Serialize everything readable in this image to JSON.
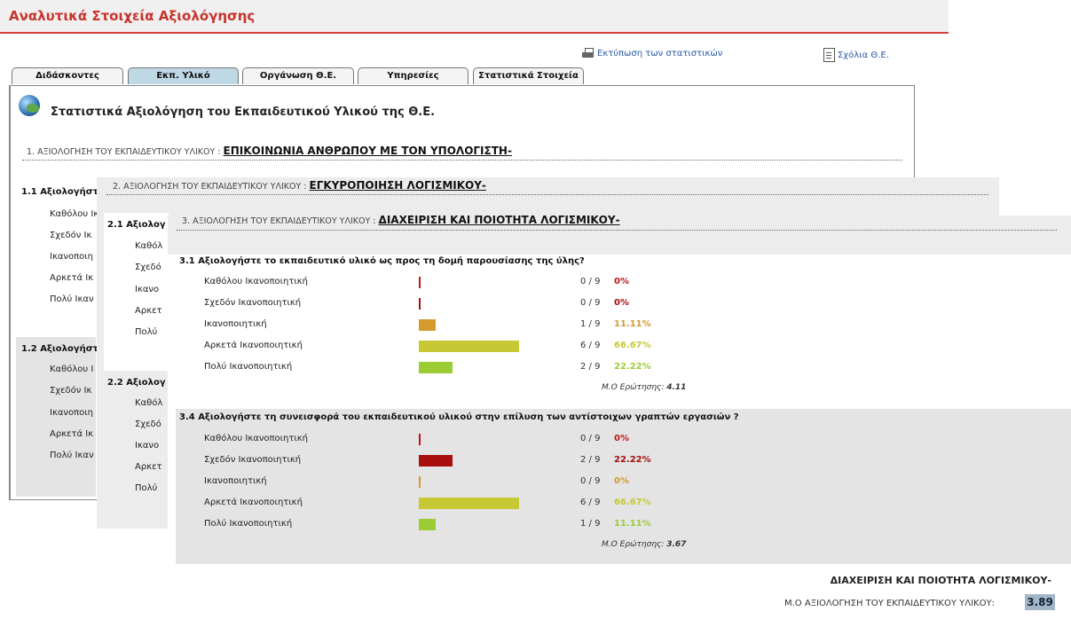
{
  "header": {
    "title": "Αναλυτικά Στοιχεία Αξιολόγησης"
  },
  "links": {
    "print": "Εκτύπωση των στατιστικών",
    "comments": "Σχόλια Θ.Ε."
  },
  "tabs": [
    "Διδάσκοντες",
    "Εκπ. Υλικό",
    "Οργάνωση Θ.Ε.",
    "Υπηρεσίες",
    "Στατιστικά Στοιχεία"
  ],
  "active_tab": "Εκπ. Υλικό",
  "page_heading": "Στατιστικά Αξιολόγηση του Εκπαιδευτικού Υλικού της Θ.Ε.",
  "colors": {
    "zero": "#c0151a",
    "low": "#a80e0e",
    "mid": "#d49a2e",
    "high": "#c6c934",
    "top": "#9ccc34"
  },
  "panel1": {
    "section_label": "1. ΑΞΙΟΛΟΓΗΣΗ ΤΟΥ ΕΚΠΑΙΔΕΥΤΙΚΟΥ ΥΛΙΚΟΥ :",
    "section_name": "ΕΠΙΚΟΙΝΩΝΙΑ ΑΝΘΡΩΠΟΥ ΜΕ ΤΟΝ ΥΠΟΛΟΓΙΣΤΗ-",
    "q1": "1.1 Αξιολογήστ",
    "q2": "1.2 Αξιολογήστ",
    "options": [
      "Καθόλου Ικ",
      "Σχεδόν Ικ",
      "Ικανοποιη",
      "Αρκετά Ικ",
      "Πολύ Ικαν"
    ],
    "options2": [
      "Καθόλου Ι",
      "Σχεδόν Ικ",
      "Ικανοποιη",
      "Αρκετά Ικ",
      "Πολύ Ικαν"
    ]
  },
  "panel2": {
    "section_label": "2. ΑΞΙΟΛΟΓΗΣΗ ΤΟΥ ΕΚΠΑΙΔΕΥΤΙΚΟΥ ΥΛΙΚΟΥ :",
    "section_name": "ΕΓΚΥΡΟΠΟΙΗΣΗ ΛΟΓΙΣΜΙΚΟΥ-",
    "q1": "2.1 Αξιολογ",
    "q2": "2.2 Αξιολογ",
    "options": [
      "Καθόλ",
      "Σχεδό",
      "Ικανο",
      "Αρκετ",
      "Πολύ"
    ],
    "options2": [
      "Καθόλ",
      "Σχεδό",
      "Ικανο",
      "Αρκετ",
      "Πολύ"
    ]
  },
  "panel3": {
    "section_label": "3. ΑΞΙΟΛΟΓΗΣΗ ΤΟΥ ΕΚΠΑΙΔΕΥΤΙΚΟΥ ΥΛΙΚΟΥ :",
    "section_name": "ΔΙΑΧΕΙΡΙΣΗ ΚΑΙ ΠΟΙΟΤΗΤΑ ΛΟΓΙΣΜΙΚΟΥ-",
    "questions": [
      {
        "title": "3.1 Αξιολογήστε το εκπαιδευτικό υλικό ως προς τη δομή παρουσίασης της ύλης?",
        "avg_label": "Μ.Ο Ερώτησης:",
        "avg_value": "4.11",
        "rows": [
          {
            "label": "Καθόλου Ικανοποιητική",
            "count": "0 / 9",
            "pct": "0%",
            "share": 0,
            "color_key": "zero"
          },
          {
            "label": "Σχεδόν Ικανοποιητική",
            "count": "0 / 9",
            "pct": "0%",
            "share": 0,
            "color_key": "low"
          },
          {
            "label": "Ικανοποιητική",
            "count": "1 / 9",
            "pct": "11.11%",
            "share": 0.1111,
            "color_key": "mid"
          },
          {
            "label": "Αρκετά Ικανοποιητική",
            "count": "6 / 9",
            "pct": "66.67%",
            "share": 0.6667,
            "color_key": "high"
          },
          {
            "label": "Πολύ Ικανοποιητική",
            "count": "2 / 9",
            "pct": "22.22%",
            "share": 0.2222,
            "color_key": "top"
          }
        ]
      },
      {
        "title": "3.4 Αξιολογήστε τη συνεισφορά του εκπαιδευτικού υλικού στην επίλυση των αντίστοιχων γραπτών εργασιών ?",
        "avg_label": "Μ.Ο Ερώτησης:",
        "avg_value": "3.67",
        "rows": [
          {
            "label": "Καθόλου Ικανοποιητική",
            "count": "0 / 9",
            "pct": "0%",
            "share": 0,
            "color_key": "zero"
          },
          {
            "label": "Σχεδόν Ικανοποιητική",
            "count": "2 / 9",
            "pct": "22.22%",
            "share": 0.2222,
            "color_key": "low"
          },
          {
            "label": "Ικανοποιητική",
            "count": "0 / 9",
            "pct": "0%",
            "share": 0,
            "color_key": "mid"
          },
          {
            "label": "Αρκετά Ικανοποιητική",
            "count": "6 / 9",
            "pct": "66.67%",
            "share": 0.6667,
            "color_key": "high"
          },
          {
            "label": "Πολύ Ικανοποιητική",
            "count": "1 / 9",
            "pct": "11.11%",
            "share": 0.1111,
            "color_key": "top"
          }
        ]
      }
    ],
    "summary_title": "ΔΙΑΧΕΙΡΙΣΗ ΚΑΙ ΠΟΙΟΤΗΤΑ ΛΟΓΙΣΜΙΚΟΥ-",
    "summary_label": "Μ.Ο ΑΞΙΟΛΟΓΗΣΗ ΤΟΥ ΕΚΠΑΙΔΕΥΤΙΚΟΥ ΥΛΙΚΟΥ:",
    "summary_value": "3.89"
  }
}
